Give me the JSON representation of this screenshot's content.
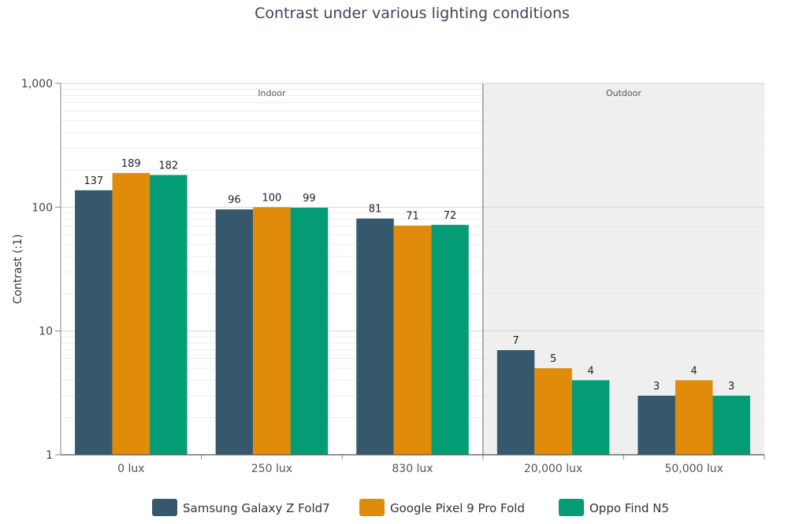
{
  "chart_data": {
    "type": "bar",
    "title": "Contrast under various lighting conditions",
    "ylabel": "Contrast (:1)",
    "xlabel": "",
    "y_scale": "log",
    "ylim": [
      1,
      1000
    ],
    "y_ticks": [
      {
        "value": 1,
        "label": "1"
      },
      {
        "value": 10,
        "label": "10"
      },
      {
        "value": 100,
        "label": "100"
      },
      {
        "value": 1000,
        "label": "1,000"
      }
    ],
    "categories": [
      "0 lux",
      "250 lux",
      "830 lux",
      "20,000 lux",
      "50,000 lux"
    ],
    "series": [
      {
        "name": "Samsung Galaxy Z Fold7",
        "color": "#36586d",
        "values": [
          137,
          96,
          81,
          7,
          3
        ]
      },
      {
        "name": "Google Pixel 9 Pro Fold",
        "color": "#e08c0a",
        "values": [
          189,
          100,
          71,
          5,
          4
        ]
      },
      {
        "name": "Oppo Find N5",
        "color": "#049c74",
        "values": [
          182,
          99,
          72,
          4,
          3
        ]
      }
    ],
    "regions": [
      {
        "label": "Indoor",
        "categories": [
          "0 lux",
          "250 lux",
          "830 lux"
        ],
        "shaded": false
      },
      {
        "label": "Outdoor",
        "categories": [
          "20,000 lux",
          "50,000 lux"
        ],
        "shaded": true
      }
    ],
    "grid": true,
    "legend_position": "bottom"
  }
}
